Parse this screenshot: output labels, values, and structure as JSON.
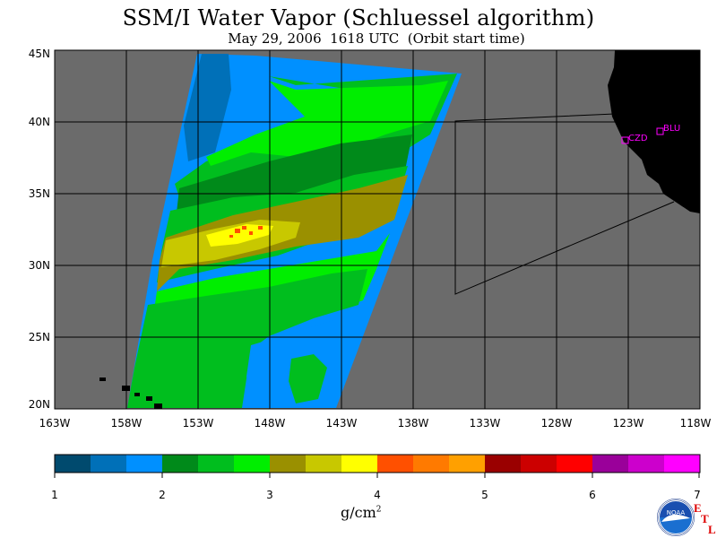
{
  "header": {
    "title": "SSM/I Water Vapor (Schluessel algorithm)",
    "subtitle": "May 29, 2006  1618 UTC  (Orbit start time)"
  },
  "map": {
    "lat_ticks": [
      "45N",
      "40N",
      "35N",
      "30N",
      "25N",
      "20N"
    ],
    "lon_ticks": [
      "163W",
      "158W",
      "153W",
      "148W",
      "143W",
      "138W",
      "133W",
      "128W",
      "123W",
      "118W"
    ],
    "lat_range": [
      20,
      45
    ],
    "lon_range": [
      -163,
      -118
    ],
    "stations": [
      {
        "label": "CZD",
        "lon": -123.0,
        "lat": 38.6
      },
      {
        "label": "BLU",
        "lon": -120.8,
        "lat": 39.2
      }
    ],
    "colors": {
      "ocean_no_data": "#6b6b6b",
      "land": "#000000",
      "station": "#ff00ff",
      "grid": "#000000"
    }
  },
  "colorbar": {
    "tick_labels": [
      "1",
      "2",
      "3",
      "4",
      "5",
      "6",
      "7"
    ],
    "units": "g/cm",
    "units_exp": "2",
    "colors": [
      "#004a6e",
      "#0070b8",
      "#0090ff",
      "#008a1a",
      "#00be1e",
      "#00ee00",
      "#9a9000",
      "#c8c800",
      "#ffff00",
      "#ff5000",
      "#ff7a00",
      "#ffa000",
      "#9a0000",
      "#cc0000",
      "#ff0000",
      "#9a009a",
      "#cc00cc",
      "#ff00ff"
    ]
  },
  "logo": {
    "text": "NOAA",
    "etl": [
      "E",
      "T",
      "L"
    ]
  }
}
